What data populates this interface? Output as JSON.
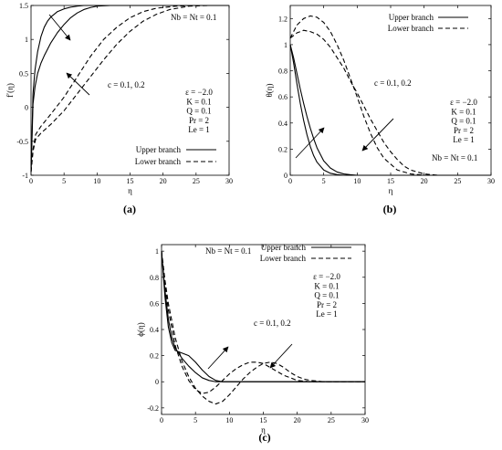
{
  "chart_data": [
    {
      "type": "line",
      "caption": "(a)",
      "xlabel": "η",
      "ylabel": "f′(η)",
      "xlim": [
        0,
        30
      ],
      "ylim": [
        -1,
        1.5
      ],
      "xticks": [
        0,
        5,
        10,
        15,
        20,
        25,
        30
      ],
      "yticks": [
        -1,
        -0.5,
        0,
        0.5,
        1,
        1.5
      ],
      "legend": {
        "placement": "bottom-right",
        "entries": [
          {
            "label": "Upper branch",
            "style": "solid"
          },
          {
            "label": "Lower branch",
            "style": "dashed"
          }
        ]
      },
      "annotations": {
        "nb_nt": "Nb = Nt = 0.1",
        "c": "c = 0.1, 0.2",
        "params": [
          "ε = −2.0",
          "K = 0.1",
          "Q = 0.1",
          "Pr = 2",
          "Le = 1"
        ]
      },
      "series": [
        {
          "style": "solid",
          "x": [
            0,
            0.3,
            0.6,
            1,
            1.5,
            2,
            2.5,
            3,
            3.5,
            4,
            5,
            6,
            7,
            8,
            10,
            15,
            20,
            30
          ],
          "y": [
            -0.95,
            0.2,
            0.55,
            0.82,
            1.04,
            1.18,
            1.27,
            1.33,
            1.37,
            1.41,
            1.45,
            1.475,
            1.49,
            1.5,
            1.5,
            1.5,
            1.5,
            1.5
          ]
        },
        {
          "style": "solid",
          "x": [
            0,
            0.3,
            0.6,
            1,
            1.5,
            2,
            3,
            4,
            5,
            6,
            7,
            8,
            9,
            10,
            12,
            15,
            20,
            30
          ],
          "y": [
            -0.95,
            0.05,
            0.3,
            0.5,
            0.65,
            0.76,
            0.95,
            1.1,
            1.22,
            1.32,
            1.39,
            1.44,
            1.47,
            1.49,
            1.5,
            1.5,
            1.5,
            1.5
          ]
        },
        {
          "style": "dashed",
          "x": [
            0,
            0.3,
            0.7,
            1.5,
            3,
            5,
            7,
            9,
            11,
            13,
            15,
            17,
            19,
            22,
            25,
            30
          ],
          "y": [
            -0.95,
            -0.62,
            -0.4,
            -0.28,
            -0.1,
            0.15,
            0.45,
            0.75,
            1.0,
            1.18,
            1.32,
            1.41,
            1.46,
            1.49,
            1.5,
            1.5
          ]
        },
        {
          "style": "dashed",
          "x": [
            0,
            0.3,
            0.7,
            1.5,
            3,
            5,
            7,
            9,
            11,
            13,
            15,
            17,
            19,
            21,
            24,
            27,
            30
          ],
          "y": [
            -0.95,
            -0.65,
            -0.47,
            -0.38,
            -0.25,
            -0.05,
            0.2,
            0.45,
            0.7,
            0.93,
            1.12,
            1.27,
            1.37,
            1.44,
            1.49,
            1.5,
            1.5
          ]
        }
      ]
    },
    {
      "type": "line",
      "caption": "(b)",
      "xlabel": "η",
      "ylabel": "θ(η)",
      "xlim": [
        0,
        30
      ],
      "ylim": [
        0,
        1.3
      ],
      "xticks": [
        0,
        5,
        10,
        15,
        20,
        25,
        30
      ],
      "yticks": [
        0,
        0.2,
        0.4,
        0.6,
        0.8,
        1,
        1.2
      ],
      "legend": {
        "placement": "top-right",
        "entries": [
          {
            "label": "Upper branch",
            "style": "solid"
          },
          {
            "label": "Lower branch",
            "style": "dashed"
          }
        ]
      },
      "annotations": {
        "nb_nt": "Nb = Nt = 0.1",
        "c": "c = 0.1, 0.2",
        "params": [
          "ε = −2.0",
          "K = 0.1",
          "Q = 0.1",
          "Pr = 2",
          "Le = 1"
        ]
      },
      "series": [
        {
          "style": "solid",
          "x": [
            0,
            0.5,
            1,
            1.5,
            2,
            2.5,
            3,
            3.5,
            4,
            5,
            6,
            7,
            8,
            10,
            30
          ],
          "y": [
            1.0,
            0.86,
            0.7,
            0.55,
            0.42,
            0.31,
            0.22,
            0.15,
            0.1,
            0.04,
            0.015,
            0.005,
            0,
            0,
            0
          ]
        },
        {
          "style": "solid",
          "x": [
            0,
            0.5,
            1,
            1.5,
            2,
            2.5,
            3,
            3.5,
            4,
            5,
            6,
            7,
            8,
            9,
            10,
            30
          ],
          "y": [
            1.0,
            0.9,
            0.78,
            0.66,
            0.55,
            0.45,
            0.36,
            0.28,
            0.21,
            0.11,
            0.055,
            0.025,
            0.01,
            0.004,
            0,
            0
          ]
        },
        {
          "style": "dashed",
          "x": [
            0,
            1,
            2,
            3,
            4,
            5,
            6,
            7,
            8,
            9,
            10,
            11,
            12,
            13,
            14,
            16,
            18,
            20,
            30
          ],
          "y": [
            1.05,
            1.15,
            1.2,
            1.22,
            1.21,
            1.17,
            1.1,
            1.0,
            0.88,
            0.74,
            0.6,
            0.45,
            0.32,
            0.21,
            0.13,
            0.04,
            0.01,
            0,
            0
          ]
        },
        {
          "style": "dashed",
          "x": [
            0,
            1,
            2,
            3,
            4,
            5,
            6,
            7,
            8,
            9,
            10,
            11,
            12,
            13,
            14,
            15,
            16,
            17,
            18,
            20,
            22,
            30
          ],
          "y": [
            1.05,
            1.09,
            1.11,
            1.1,
            1.08,
            1.04,
            0.98,
            0.9,
            0.82,
            0.72,
            0.63,
            0.53,
            0.43,
            0.34,
            0.25,
            0.18,
            0.12,
            0.07,
            0.04,
            0.01,
            0,
            0
          ]
        }
      ]
    },
    {
      "type": "line",
      "caption": "(c)",
      "xlabel": "η",
      "ylabel": "ϕ(η)",
      "xlim": [
        0,
        30
      ],
      "ylim": [
        -0.25,
        1.05
      ],
      "xticks": [
        0,
        5,
        10,
        15,
        20,
        25,
        30
      ],
      "yticks": [
        -0.2,
        0,
        0.2,
        0.4,
        0.6,
        0.8,
        1
      ],
      "legend": {
        "placement": "top-right",
        "entries": [
          {
            "label": "Upper branch",
            "style": "solid"
          },
          {
            "label": "Lower branch",
            "style": "dashed"
          }
        ]
      },
      "annotations": {
        "nb_nt": "Nb = Nt = 0.1",
        "c": "c = 0.1, 0.2",
        "params": [
          "ε = −2.0",
          "K = 0.1",
          "Q = 0.1",
          "Pr = 2",
          "Le = 1"
        ]
      },
      "series": [
        {
          "style": "solid",
          "x": [
            0,
            0.5,
            1,
            1.5,
            2,
            3,
            4,
            5,
            6,
            7,
            8,
            9,
            10,
            12,
            30
          ],
          "y": [
            1.0,
            0.65,
            0.42,
            0.3,
            0.24,
            0.22,
            0.2,
            0.15,
            0.09,
            0.04,
            0.01,
            0,
            0,
            0,
            0
          ]
        },
        {
          "style": "solid",
          "x": [
            0,
            0.5,
            1,
            1.5,
            2,
            3,
            4,
            5,
            6,
            7,
            8,
            9,
            10,
            11,
            12,
            30
          ],
          "y": [
            1.0,
            0.7,
            0.48,
            0.34,
            0.26,
            0.18,
            0.12,
            0.07,
            0.03,
            0.01,
            0,
            0,
            0,
            0,
            0,
            0
          ]
        },
        {
          "style": "dashed",
          "x": [
            0,
            0.5,
            1,
            2,
            3,
            4,
            5,
            6,
            7,
            8,
            9,
            10,
            11,
            12,
            13,
            14,
            15,
            16,
            17,
            18,
            20,
            22,
            30
          ],
          "y": [
            1.0,
            0.75,
            0.55,
            0.28,
            0.12,
            0.01,
            -0.06,
            -0.09,
            -0.08,
            -0.04,
            0.01,
            0.06,
            0.1,
            0.13,
            0.15,
            0.15,
            0.14,
            0.11,
            0.08,
            0.05,
            0.01,
            0,
            0
          ]
        },
        {
          "style": "dashed",
          "x": [
            0,
            0.5,
            1,
            2,
            3,
            4,
            5,
            6,
            7,
            8,
            9,
            10,
            11,
            12,
            13,
            14,
            15,
            16,
            17,
            18,
            19,
            20,
            21,
            22,
            24,
            30
          ],
          "y": [
            1.0,
            0.78,
            0.6,
            0.34,
            0.16,
            0.04,
            -0.05,
            -0.11,
            -0.15,
            -0.17,
            -0.15,
            -0.1,
            -0.04,
            0.02,
            0.07,
            0.11,
            0.14,
            0.15,
            0.14,
            0.11,
            0.07,
            0.04,
            0.02,
            0.01,
            0,
            0
          ]
        }
      ]
    }
  ]
}
